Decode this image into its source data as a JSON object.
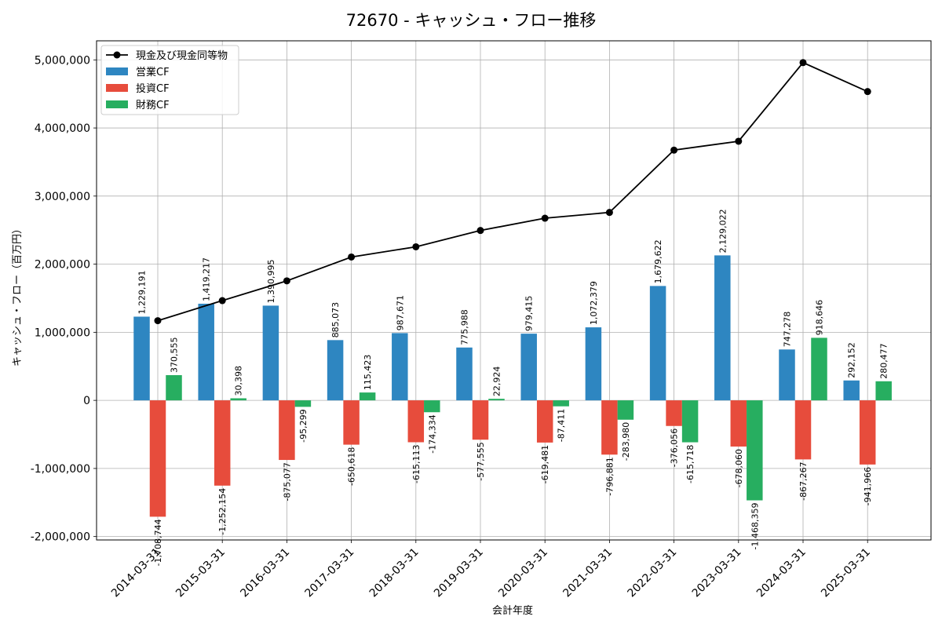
{
  "chart_data": {
    "type": "bar",
    "title": "72670 - キャッシュ・フロー推移",
    "xlabel": "会計年度",
    "ylabel": "キャッシュ・フロー（百万円）",
    "ylim": [
      -2050000,
      5280000
    ],
    "yticks": [
      -2000000,
      -1000000,
      0,
      1000000,
      2000000,
      3000000,
      4000000,
      5000000
    ],
    "ytick_labels": [
      "-2,000,000",
      "-1,000,000",
      "0",
      "1,000,000",
      "2,000,000",
      "3,000,000",
      "4,000,000",
      "5,000,000"
    ],
    "grid": true,
    "legend_position": "top-left",
    "categories": [
      "2014-03-31",
      "2015-03-31",
      "2016-03-31",
      "2017-03-31",
      "2018-03-31",
      "2019-03-31",
      "2020-03-31",
      "2021-03-31",
      "2022-03-31",
      "2023-03-31",
      "2024-03-31",
      "2025-03-31"
    ],
    "series": [
      {
        "name": "営業CF",
        "type": "bar",
        "color": "#2e86c1",
        "values": [
          1229191,
          1419217,
          1390995,
          885073,
          987671,
          775988,
          979415,
          1072379,
          1679622,
          2129022,
          747278,
          292152
        ],
        "labels": [
          "1,229,191",
          "1,419,217",
          "1,390,995",
          "885,073",
          "987,671",
          "775,988",
          "979,415",
          "1,072,379",
          "1,679,622",
          "2,129,022",
          "747,278",
          "292,152"
        ]
      },
      {
        "name": "投資CF",
        "type": "bar",
        "color": "#e74c3c",
        "values": [
          -1708744,
          -1252154,
          -875077,
          -650618,
          -615113,
          -577555,
          -619481,
          -796881,
          -376056,
          -678060,
          -867267,
          -941966
        ],
        "labels": [
          "-1,708,744",
          "-1,252,154",
          "-875,077",
          "-650,618",
          "-615,113",
          "-577,555",
          "-619,481",
          "-796,881",
          "-376,056",
          "-678,060",
          "-867,267",
          "-941,966"
        ]
      },
      {
        "name": "財務CF",
        "type": "bar",
        "color": "#27ae60",
        "values": [
          370555,
          30398,
          -95299,
          115423,
          -174334,
          22924,
          -87411,
          -283980,
          -615718,
          -1468359,
          918646,
          280477
        ],
        "labels": [
          "370,555",
          "30,398",
          "-95,299",
          "115,423",
          "-174,334",
          "22,924",
          "-87,411",
          "-283,980",
          "-615,718",
          "-1,468,359",
          "918,646",
          "280,477"
        ]
      },
      {
        "name": "現金及び現金同等物",
        "type": "line",
        "color": "#000000",
        "values": [
          1170000,
          1465000,
          1755000,
          2105000,
          2255000,
          2495000,
          2675000,
          2760000,
          3675000,
          3805000,
          4960000,
          4535000
        ]
      }
    ]
  }
}
